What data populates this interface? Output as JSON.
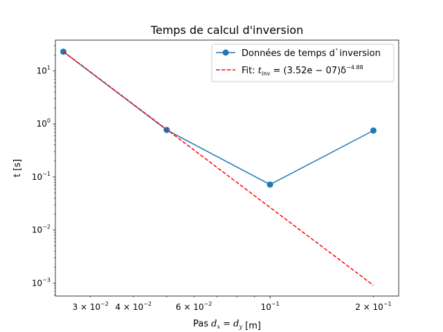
{
  "chart_data": {
    "type": "line",
    "title": "Temps de calcul d'inversion",
    "xlabel": "Pas d_x = d_y [m]",
    "xlabel_prefix": "Pas ",
    "xlabel_math": "d_x = d_y",
    "xlabel_suffix": " [m]",
    "ylabel": "t [s]",
    "xscale": "log",
    "yscale": "log",
    "xlim": [
      0.0237,
      0.237
    ],
    "ylim": [
      0.00057,
      38
    ],
    "grid": false,
    "legend_position": "top-right",
    "x_major_ticks": [
      {
        "value": 0.1,
        "mantissa": "",
        "base": "10",
        "exp": "−1"
      }
    ],
    "x_minor_ticks": [
      {
        "value": 0.03,
        "mantissa": "3 × ",
        "base": "10",
        "exp": "−2",
        "labeled": true
      },
      {
        "value": 0.04,
        "mantissa": "4 × ",
        "base": "10",
        "exp": "−2",
        "labeled": true
      },
      {
        "value": 0.05,
        "labeled": false
      },
      {
        "value": 0.06,
        "mantissa": "6 × ",
        "base": "10",
        "exp": "−2",
        "labeled": true
      },
      {
        "value": 0.07,
        "labeled": false
      },
      {
        "value": 0.08,
        "labeled": false
      },
      {
        "value": 0.09,
        "labeled": false
      },
      {
        "value": 0.2,
        "mantissa": "2 × ",
        "base": "10",
        "exp": "−1",
        "labeled": true
      }
    ],
    "y_major_ticks": [
      {
        "value": 0.001,
        "base": "10",
        "exp": "−3"
      },
      {
        "value": 0.01,
        "base": "10",
        "exp": "−2"
      },
      {
        "value": 0.1,
        "base": "10",
        "exp": "−1"
      },
      {
        "value": 1,
        "base": "10",
        "exp": "0"
      },
      {
        "value": 10,
        "base": "10",
        "exp": "1"
      }
    ],
    "series": [
      {
        "name": "Données de temps d`inversion",
        "style": "line-with-markers",
        "color": "#1f77b4",
        "x": [
          0.025,
          0.05,
          0.1,
          0.2
        ],
        "y": [
          23.0,
          0.77,
          0.072,
          0.75
        ]
      },
      {
        "name": "Fit: t_inv = (3.52e−07)δ^−4.88",
        "style": "dashed",
        "color": "#ff0000",
        "coefficient": 3.52e-07,
        "exponent": -4.88,
        "x": [
          0.025,
          0.05,
          0.1,
          0.2
        ],
        "y": [
          23.6,
          0.8,
          0.027,
          0.00093
        ]
      }
    ],
    "legend": {
      "entries": [
        {
          "text": "Données de temps d`inversion"
        },
        {
          "prefix": "Fit: ",
          "var": "t",
          "sub": "inv",
          "formula": " = (3.52e − 07)δ",
          "sup": "−4.88"
        }
      ]
    }
  }
}
